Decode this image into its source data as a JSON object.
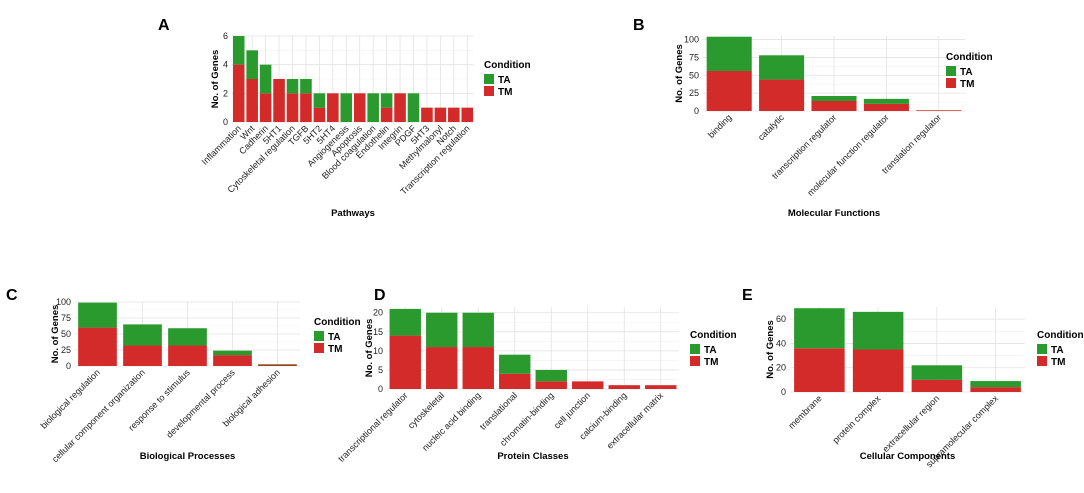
{
  "colors": {
    "TA": "#2a9a2e",
    "TM": "#d32a2a"
  },
  "chart_data": [
    {
      "letter": "A",
      "type": "bar",
      "stacked": true,
      "xlabel": "Pathways",
      "ylabel": "No. of Genes",
      "ylim": [
        0,
        6
      ],
      "yticks": [
        0,
        2,
        4,
        6
      ],
      "legend": {
        "title": "Condition",
        "items": [
          "TA",
          "TM"
        ]
      },
      "categories": [
        "Inflammation",
        "Wnt",
        "Cadherin",
        "5HT1",
        "Cytoskeletal regulation",
        "TGFB",
        "5HT2",
        "5HT4",
        "Angiogenesis",
        "Apoptosis",
        "Blood coagulation",
        "Endothelin",
        "Integrin",
        "PDGF",
        "5HT3",
        "Methylmalonyl",
        "Notch",
        "Transcription regulation"
      ],
      "series": [
        {
          "name": "TM",
          "values": [
            4,
            3,
            2,
            3,
            2,
            2,
            1,
            2,
            0,
            2,
            0,
            1,
            2,
            0,
            1,
            1,
            1,
            1
          ]
        },
        {
          "name": "TA",
          "values": [
            2,
            2,
            2,
            0,
            1,
            1,
            1,
            0,
            2,
            0,
            2,
            1,
            0,
            2,
            0,
            0,
            0,
            0
          ]
        }
      ]
    },
    {
      "letter": "B",
      "type": "bar",
      "stacked": true,
      "xlabel": "Molecular Functions",
      "ylabel": "No. of Genes",
      "ylim": [
        0,
        105
      ],
      "yticks": [
        0,
        25,
        50,
        75,
        100
      ],
      "legend": {
        "title": "Condition",
        "items": [
          "TA",
          "TM"
        ]
      },
      "categories": [
        "binding",
        "catalytic",
        "transcription regulator",
        "molecular function regulator",
        "translation regulator"
      ],
      "series": [
        {
          "name": "TM",
          "values": [
            56,
            44,
            14,
            10,
            1
          ]
        },
        {
          "name": "TA",
          "values": [
            48,
            34,
            7,
            7,
            0
          ]
        }
      ]
    },
    {
      "letter": "C",
      "type": "bar",
      "stacked": true,
      "xlabel": "Biological Processes",
      "ylabel": "No. of Genes",
      "ylim": [
        0,
        100
      ],
      "yticks": [
        0,
        25,
        50,
        75,
        100
      ],
      "legend": {
        "title": "Condition",
        "items": [
          "TA",
          "TM"
        ]
      },
      "categories": [
        "biological regulation",
        "cellular component organization",
        "response to stimulus",
        "developmental process",
        "biological adhesion"
      ],
      "series": [
        {
          "name": "TM",
          "values": [
            60,
            32,
            32,
            17,
            2
          ]
        },
        {
          "name": "TA",
          "values": [
            39,
            33,
            27,
            7,
            1
          ]
        }
      ]
    },
    {
      "letter": "D",
      "type": "bar",
      "stacked": true,
      "xlabel": "Protein Classes",
      "ylabel": "No. of Genes",
      "ylim": [
        0,
        21.5
      ],
      "yticks": [
        0,
        5,
        10,
        15,
        20
      ],
      "legend": {
        "title": "Condition",
        "items": [
          "TA",
          "TM"
        ]
      },
      "categories": [
        "transcriptional regulator",
        "cytoskeletal",
        "nucleic acid binding",
        "translational",
        "chromatin-binding",
        "cell junction",
        "calcium-binding",
        "extracellular matrix"
      ],
      "series": [
        {
          "name": "TM",
          "values": [
            14,
            11,
            11,
            4,
            2,
            2,
            1,
            1
          ]
        },
        {
          "name": "TA",
          "values": [
            7,
            9,
            9,
            5,
            3,
            0,
            0,
            0
          ]
        }
      ]
    },
    {
      "letter": "E",
      "type": "bar",
      "stacked": true,
      "xlabel": "Cellular Components",
      "ylabel": "No. of Genes",
      "ylim": [
        0,
        70
      ],
      "yticks": [
        0,
        20,
        40,
        60
      ],
      "legend": {
        "title": "Condition",
        "items": [
          "TA",
          "TM"
        ]
      },
      "categories": [
        "membrane",
        "protein complex",
        "extracellular region",
        "supramolecular complex"
      ],
      "series": [
        {
          "name": "TM",
          "values": [
            36,
            35,
            10,
            4
          ]
        },
        {
          "name": "TA",
          "values": [
            33,
            31,
            12,
            5
          ]
        }
      ]
    }
  ]
}
